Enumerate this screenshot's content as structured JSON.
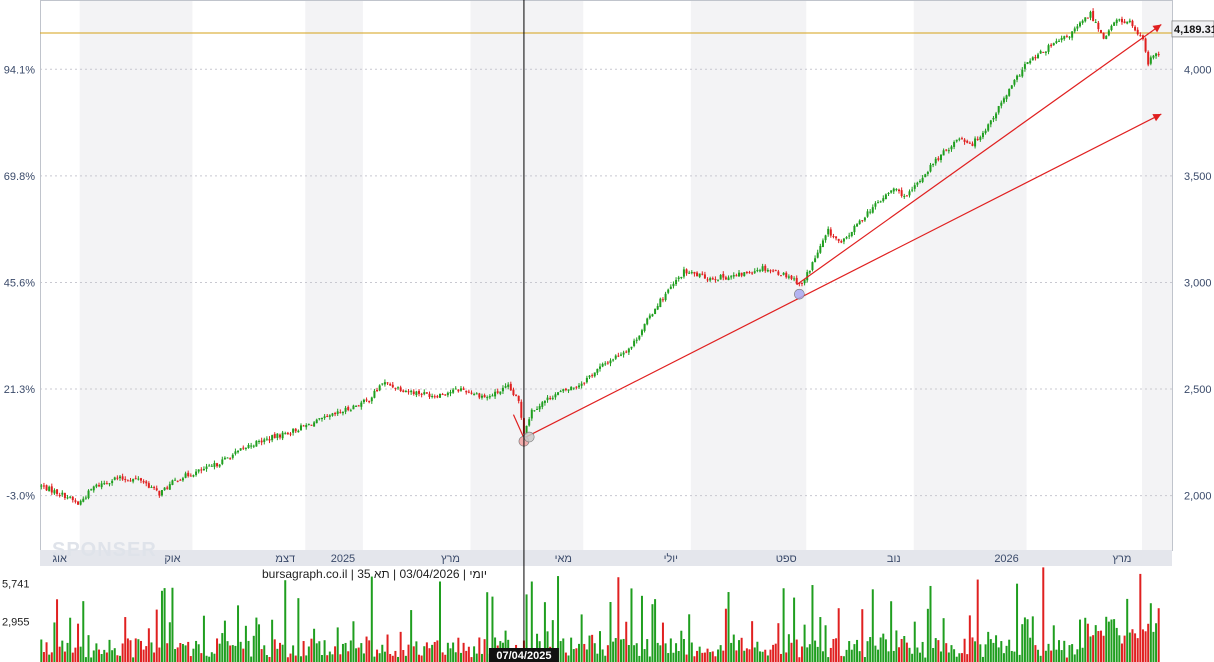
{
  "chart_data": {
    "type": "candlestick",
    "instrument": "תא 35",
    "interval": "יומי",
    "date": "03/04/2026",
    "source": "bursagraph.co.il",
    "info_line": "יומי | 03/04/2026 | תא 35 | bursagraph.co.il",
    "watermark": "SPONSER",
    "y_right_ticks": [
      "2,000",
      "2,500",
      "3,000",
      "3,500",
      "4,000"
    ],
    "y_right_values": [
      2000,
      2500,
      3000,
      3500,
      4000
    ],
    "y_left_ticks": [
      "-3.0%",
      "21.3%",
      "45.6%",
      "69.8%",
      "94.1%"
    ],
    "y_left_values": [
      2000,
      2500,
      3000,
      3500,
      4000
    ],
    "ylim": [
      1745,
      4325
    ],
    "x_labels": [
      {
        "text": "אוג",
        "idx": 7
      },
      {
        "text": "אוק",
        "idx": 50
      },
      {
        "text": "דצמ",
        "idx": 93
      },
      {
        "text": "2025",
        "idx": 115
      },
      {
        "text": "מרץ",
        "idx": 156
      },
      {
        "text": "מאי",
        "idx": 199
      },
      {
        "text": "יולי",
        "idx": 240
      },
      {
        "text": "ספט",
        "idx": 284
      },
      {
        "text": "נוב",
        "idx": 325
      },
      {
        "text": "2026",
        "idx": 368
      },
      {
        "text": "מרץ",
        "idx": 412
      }
    ],
    "current_price": "4,189.31",
    "current_value": 4189.31,
    "crosshair_date": "07/04/2025",
    "crosshair_idx": 184,
    "volume_ticks": [
      "5,741",
      "2,955"
    ],
    "volume_tick_values": [
      5741,
      2955
    ],
    "volume_max": 7000,
    "price_anchors": [
      [
        0,
        2045
      ],
      [
        10,
        1995
      ],
      [
        14,
        1960
      ],
      [
        20,
        2040
      ],
      [
        28,
        2080
      ],
      [
        38,
        2075
      ],
      [
        45,
        2010
      ],
      [
        52,
        2080
      ],
      [
        65,
        2135
      ],
      [
        80,
        2240
      ],
      [
        95,
        2300
      ],
      [
        110,
        2370
      ],
      [
        125,
        2450
      ],
      [
        130,
        2530
      ],
      [
        140,
        2490
      ],
      [
        150,
        2470
      ],
      [
        160,
        2500
      ],
      [
        170,
        2460
      ],
      [
        178,
        2510
      ],
      [
        182,
        2440
      ],
      [
        184,
        2300
      ],
      [
        187,
        2400
      ],
      [
        195,
        2470
      ],
      [
        205,
        2520
      ],
      [
        215,
        2620
      ],
      [
        225,
        2700
      ],
      [
        235,
        2900
      ],
      [
        245,
        3050
      ],
      [
        255,
        3020
      ],
      [
        265,
        3030
      ],
      [
        275,
        3070
      ],
      [
        285,
        3030
      ],
      [
        290,
        2990
      ],
      [
        300,
        3240
      ],
      [
        305,
        3180
      ],
      [
        315,
        3330
      ],
      [
        325,
        3440
      ],
      [
        330,
        3400
      ],
      [
        340,
        3560
      ],
      [
        350,
        3680
      ],
      [
        355,
        3650
      ],
      [
        360,
        3720
      ],
      [
        368,
        3880
      ],
      [
        375,
        4020
      ],
      [
        385,
        4110
      ],
      [
        392,
        4160
      ],
      [
        400,
        4260
      ],
      [
        405,
        4150
      ],
      [
        410,
        4230
      ],
      [
        415,
        4220
      ],
      [
        420,
        4130
      ],
      [
        422,
        4020
      ],
      [
        424,
        4070
      ]
    ],
    "horizontal_line": 4170,
    "trend_lines": [
      {
        "from": [
          180,
          2380
        ],
        "to": [
          184,
          2270
        ],
        "color": "#e02020"
      },
      {
        "from": [
          184,
          2270
        ],
        "to": [
          427,
          3790
        ],
        "color": "#e02020",
        "arrow": true
      },
      {
        "from": [
          288,
          2990
        ],
        "to": [
          427,
          4210
        ],
        "color": "#e02020",
        "arrow": true
      }
    ],
    "markers": [
      {
        "idx": 184,
        "value": 2255,
        "color": "#f2a0a0"
      },
      {
        "idx": 186,
        "value": 2275,
        "color": "#c8c8c8"
      },
      {
        "idx": 289,
        "value": 2945,
        "color": "#a8a8f0"
      }
    ]
  },
  "colors": {
    "up": "#1f9e1f",
    "down": "#e02020",
    "hline": "#d4a017",
    "trend": "#e02020",
    "band": "#f3f3f5",
    "grid": "#c8c8d0",
    "axis_bar": "#e4e6ec"
  }
}
